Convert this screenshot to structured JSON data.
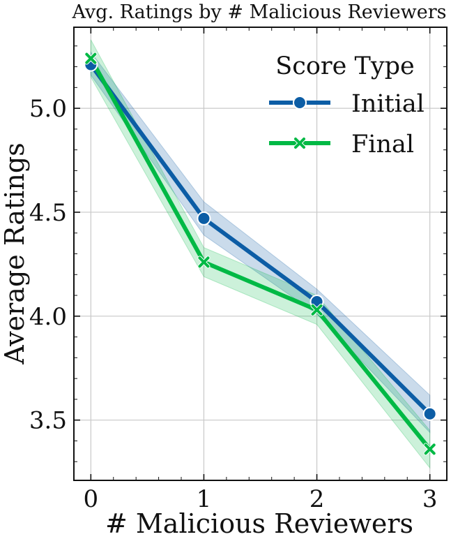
{
  "chart_data": {
    "type": "line",
    "title": "Avg. Ratings by # Malicious Reviewers",
    "xlabel": "# Malicious Reviewers",
    "ylabel": "Average Ratings",
    "x": [
      0,
      1,
      2,
      3
    ],
    "x_tick_labels": [
      "0",
      "1",
      "2",
      "3"
    ],
    "xlim": [
      -0.15,
      3.15
    ],
    "ylim": [
      3.21,
      5.39
    ],
    "y_ticks": [
      3.5,
      4.0,
      4.5,
      5.0
    ],
    "y_tick_labels": [
      "3.5",
      "4.0",
      "4.5",
      "5.0"
    ],
    "grid": true,
    "legend": {
      "title": "Score Type",
      "position": "top-right"
    },
    "series": [
      {
        "name": "Initial",
        "color": "#0c5da5",
        "band_color": "#0c5da5",
        "marker": "circle",
        "values": [
          5.21,
          4.47,
          4.07,
          3.53
        ],
        "ci_lower": [
          5.16,
          4.39,
          4.01,
          3.44
        ],
        "ci_upper": [
          5.27,
          4.55,
          4.13,
          3.62
        ]
      },
      {
        "name": "Final",
        "color": "#00b945",
        "band_color": "#00b945",
        "marker": "x",
        "values": [
          5.24,
          4.26,
          4.03,
          3.36
        ],
        "ci_lower": [
          5.15,
          4.19,
          3.96,
          3.27
        ],
        "ci_upper": [
          5.33,
          4.33,
          4.1,
          3.45
        ]
      }
    ]
  }
}
